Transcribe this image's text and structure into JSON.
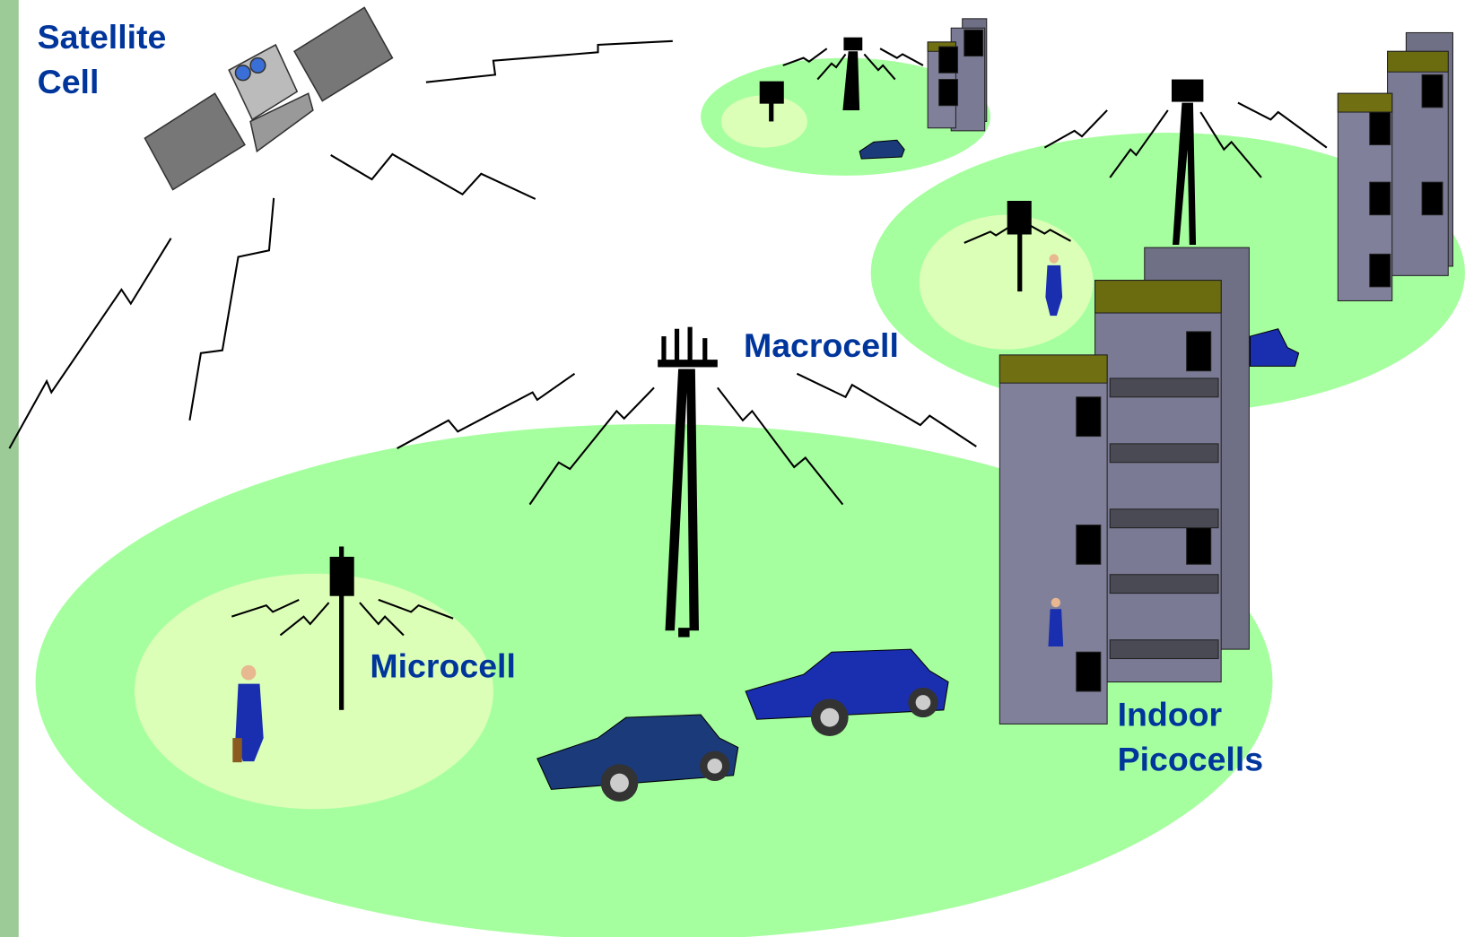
{
  "cells": [
    {
      "label_lines": [
        "Satellite",
        "Cell"
      ]
    },
    {
      "label_lines": [
        "Macrocell"
      ]
    },
    {
      "label_lines": [
        "Microcell"
      ]
    },
    {
      "label_lines": [
        "Indoor",
        "Picocells"
      ]
    }
  ]
}
